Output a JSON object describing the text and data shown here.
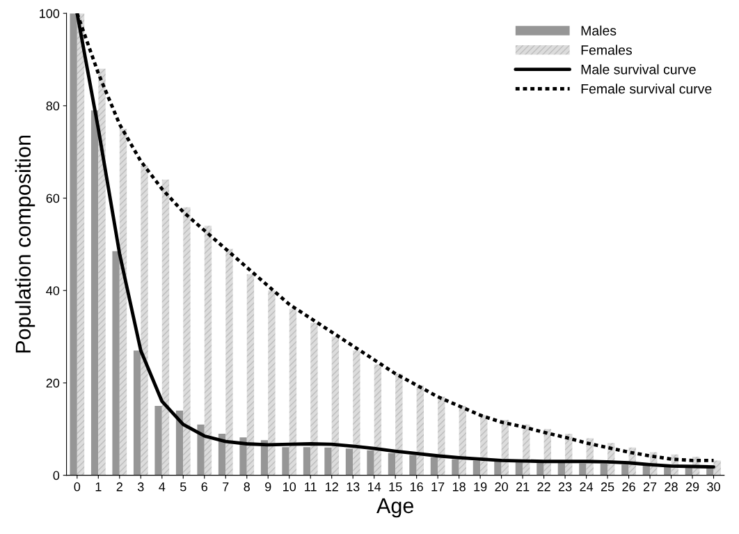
{
  "chart_data": {
    "type": "bar",
    "xlabel": "Age",
    "ylabel": "Population composition",
    "categories": [
      "0",
      "1",
      "2",
      "3",
      "4",
      "5",
      "6",
      "7",
      "8",
      "9",
      "10",
      "11",
      "12",
      "13",
      "14",
      "15",
      "16",
      "17",
      "18",
      "19",
      "20",
      "21",
      "22",
      "23",
      "24",
      "25",
      "26",
      "27",
      "28",
      "29",
      "30"
    ],
    "ylim": [
      0,
      100
    ],
    "yticks": [
      0,
      20,
      40,
      60,
      80,
      100
    ],
    "grid": false,
    "legend": "top right",
    "series": [
      {
        "name": "Males",
        "color": "#969696",
        "values": [
          100,
          79,
          48.5,
          27,
          15,
          14,
          11,
          9,
          8.2,
          7.6,
          6.1,
          6.1,
          6,
          5.8,
          5.4,
          4.8,
          4.4,
          3.9,
          3.5,
          3.2,
          3,
          2.9,
          2.8,
          2.7,
          2.6,
          2.5,
          2.3,
          2.1,
          1.9,
          1.8,
          1.7
        ]
      },
      {
        "name": "Females",
        "color": "#dcdcdc",
        "values": [
          100,
          88,
          75,
          67,
          64,
          58,
          54,
          49,
          43.5,
          40,
          36,
          33,
          30,
          27,
          24,
          22,
          19.5,
          17,
          15,
          13,
          12,
          11,
          10,
          9,
          8,
          7,
          6,
          5,
          4.5,
          4,
          3.2
        ]
      },
      {
        "name": "Male survival curve",
        "type": "line",
        "color": "#000000",
        "line_style": "solid",
        "values": [
          100,
          75,
          48,
          27,
          16,
          11,
          8.5,
          7.3,
          6.8,
          6.6,
          6.7,
          6.8,
          6.7,
          6.3,
          5.8,
          5.2,
          4.7,
          4.2,
          3.8,
          3.5,
          3.2,
          3.1,
          3,
          3,
          3,
          2.9,
          2.7,
          2.3,
          2,
          1.9,
          1.8
        ]
      },
      {
        "name": "Female survival curve",
        "type": "line",
        "color": "#000000",
        "line_style": "dashed",
        "values": [
          100,
          87,
          76,
          68,
          62,
          57,
          53,
          49,
          45,
          41,
          37,
          34,
          31,
          28,
          25,
          22,
          19.5,
          17,
          15,
          13,
          11.5,
          10.5,
          9.3,
          8.2,
          7,
          6,
          5,
          4.2,
          3.5,
          3.2,
          3.2
        ]
      }
    ]
  }
}
